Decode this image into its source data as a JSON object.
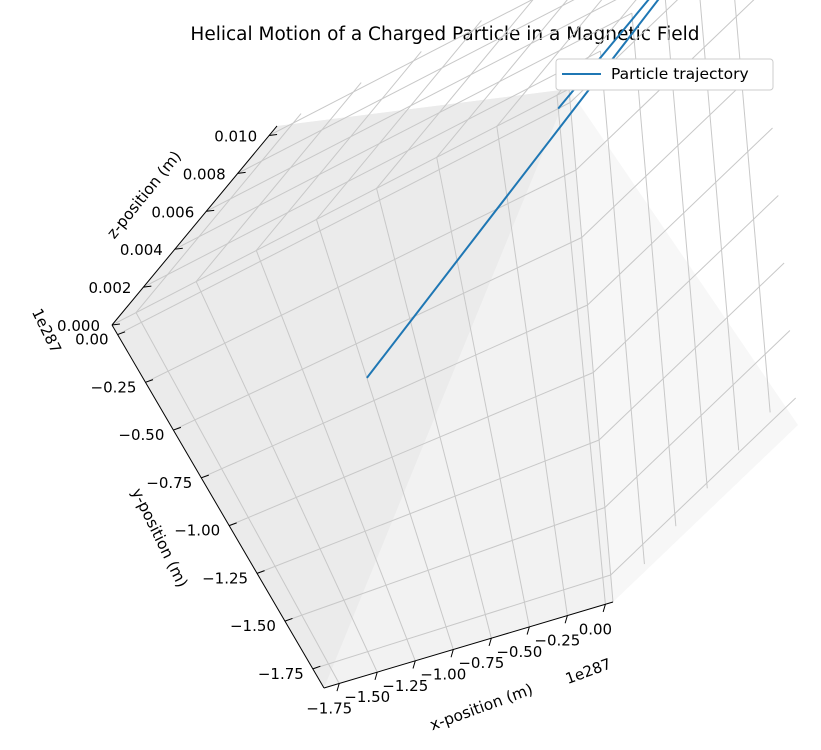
{
  "chart_data": {
    "type": "line",
    "projection": "3d",
    "title": "Helical Motion of a Charged Particle in a Magnetic Field",
    "xlabel": "x-position (m)",
    "ylabel": "y-position (m)",
    "zlabel": "z-position (m)",
    "x_offset_label": "1e287",
    "y_offset_label": "1e287",
    "x_ticks": [
      "−1.75",
      "−1.50",
      "−1.25",
      "−1.00",
      "−0.75",
      "−0.50",
      "−0.25",
      "0.00"
    ],
    "y_ticks": [
      "0.00",
      "−0.25",
      "−0.50",
      "−0.75",
      "−1.00",
      "−1.25",
      "−1.50",
      "−1.75"
    ],
    "z_ticks": [
      "0.000",
      "0.002",
      "0.004",
      "0.006",
      "0.008",
      "0.010"
    ],
    "xlim": [
      -1.85,
      0.05
    ],
    "ylim": [
      -1.85,
      0.05
    ],
    "zlim": [
      0.0,
      0.0105
    ],
    "x_scale_exponent": 287,
    "y_scale_exponent": 287,
    "grid": true,
    "legend_position": "top-right",
    "series": [
      {
        "name": "Particle trajectory",
        "color": "#1f77b4",
        "points": [
          {
            "x": 0.0,
            "y": 0.0,
            "z": 0.0
          },
          {
            "x": 0.0,
            "y": 0.0,
            "z": 0.0105
          },
          {
            "x": -0.05,
            "y": -0.05,
            "z": 0.0105
          },
          {
            "x": -1.0,
            "y": -0.65,
            "z": 0.0
          }
        ]
      }
    ]
  }
}
